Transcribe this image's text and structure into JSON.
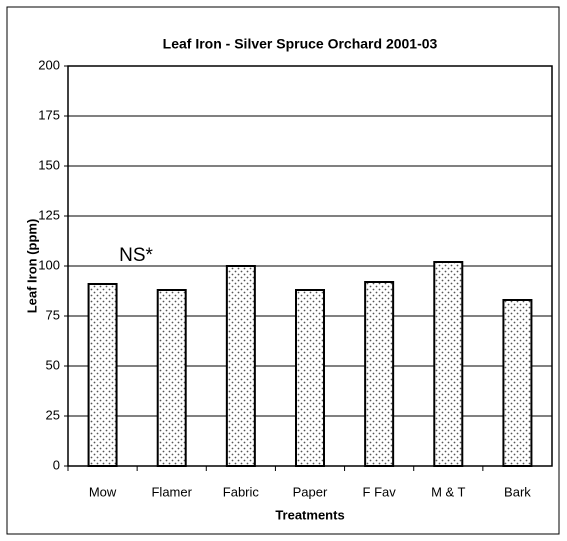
{
  "chart_data": {
    "type": "bar",
    "title": "Leaf Iron - Silver Spruce Orchard 2001-03",
    "x_label": "Treatments",
    "y_label": "Leaf Iron (ppm)",
    "annotation": "NS*",
    "categories": [
      "Mow",
      "Flamer",
      "Fabric",
      "Paper",
      "F Fav",
      "M & T",
      "Bark"
    ],
    "values": [
      91,
      88,
      100,
      88,
      92,
      102,
      83
    ],
    "color": "#000000",
    "ylim": [
      0,
      200
    ],
    "yticks": [
      0,
      25,
      50,
      75,
      100,
      125,
      150,
      175,
      200
    ],
    "grid": true
  }
}
